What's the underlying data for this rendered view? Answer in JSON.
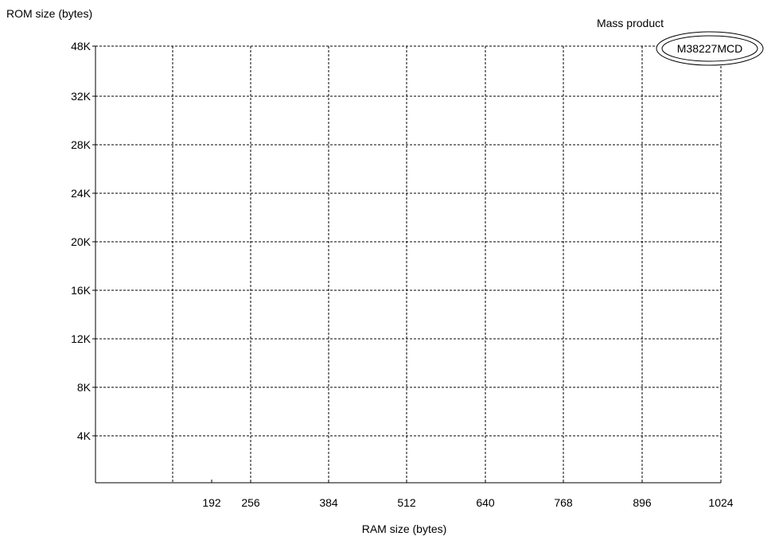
{
  "chart_data": {
    "type": "scatter",
    "ylabel": "ROM size (bytes)",
    "xlabel": "RAM size (bytes)",
    "y_ticks": [
      "4K",
      "8K",
      "12K",
      "16K",
      "20K",
      "24K",
      "28K",
      "32K",
      "48K"
    ],
    "x_ticks": [
      "192",
      "256",
      "384",
      "512",
      "640",
      "768",
      "896",
      "1024"
    ],
    "grid": true,
    "annotations": [
      {
        "label": "Mass product",
        "product": "M38227MCD",
        "x": "1024",
        "y": "48K"
      }
    ]
  }
}
